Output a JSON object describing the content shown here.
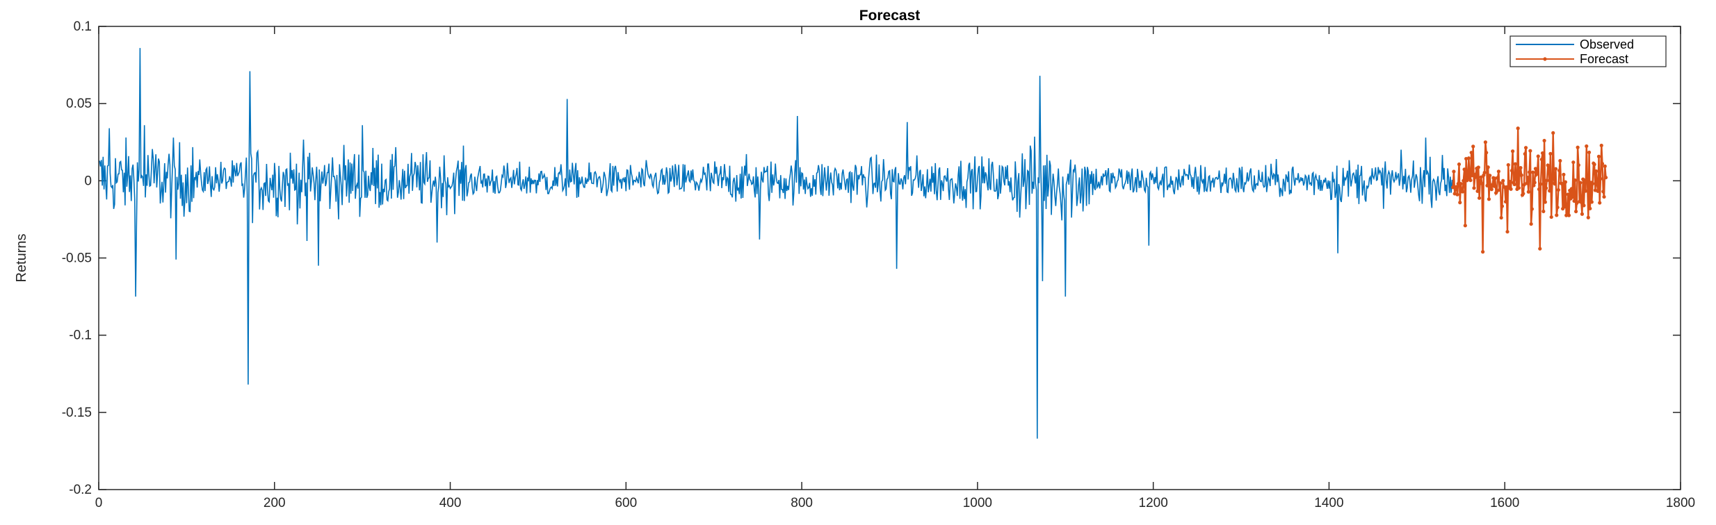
{
  "chart_data": {
    "type": "line",
    "title": "Forecast",
    "xlabel": "",
    "ylabel": "Returns",
    "xlim": [
      0,
      1800
    ],
    "ylim": [
      -0.2,
      0.1
    ],
    "xticks": [
      0,
      200,
      400,
      600,
      800,
      1000,
      1200,
      1400,
      1600,
      1800
    ],
    "yticks": [
      -0.2,
      -0.15,
      -0.1,
      -0.05,
      0,
      0.05,
      0.1
    ],
    "xtick_labels": [
      "0",
      "200",
      "400",
      "600",
      "800",
      "1000",
      "1200",
      "1400",
      "1600",
      "1800"
    ],
    "ytick_labels": [
      "-0.2",
      "-0.15",
      "-0.1",
      "-0.05",
      "0",
      "0.05",
      "0.1"
    ],
    "grid": false,
    "legend_position": "top-right",
    "series": [
      {
        "name": "Observed",
        "color": "#0072BD",
        "marker": "none",
        "x_range": [
          1,
          1541
        ],
        "spikes": [
          {
            "x": 42,
            "y": -0.075
          },
          {
            "x": 47,
            "y": 0.086
          },
          {
            "x": 52,
            "y": 0.036
          },
          {
            "x": 12,
            "y": 0.034
          },
          {
            "x": 88,
            "y": -0.051
          },
          {
            "x": 170,
            "y": -0.132
          },
          {
            "x": 172,
            "y": 0.071
          },
          {
            "x": 237,
            "y": -0.039
          },
          {
            "x": 250,
            "y": -0.055
          },
          {
            "x": 300,
            "y": 0.036
          },
          {
            "x": 385,
            "y": -0.04
          },
          {
            "x": 533,
            "y": 0.053
          },
          {
            "x": 752,
            "y": -0.038
          },
          {
            "x": 795,
            "y": 0.042
          },
          {
            "x": 908,
            "y": -0.057
          },
          {
            "x": 920,
            "y": 0.038
          },
          {
            "x": 1068,
            "y": -0.167
          },
          {
            "x": 1071,
            "y": 0.068
          },
          {
            "x": 1074,
            "y": -0.065
          },
          {
            "x": 1100,
            "y": -0.075
          },
          {
            "x": 1195,
            "y": -0.042
          },
          {
            "x": 1410,
            "y": -0.047
          },
          {
            "x": 1510,
            "y": 0.028
          }
        ]
      },
      {
        "name": "Forecast",
        "color": "#D95319",
        "marker": "dot",
        "x_range": [
          1541,
          1715
        ],
        "spikes": [
          {
            "x": 1555,
            "y": -0.029
          },
          {
            "x": 1575,
            "y": -0.046
          },
          {
            "x": 1578,
            "y": 0.025
          },
          {
            "x": 1603,
            "y": -0.033
          },
          {
            "x": 1615,
            "y": 0.034
          },
          {
            "x": 1630,
            "y": -0.028
          },
          {
            "x": 1640,
            "y": -0.044
          },
          {
            "x": 1645,
            "y": 0.026
          },
          {
            "x": 1655,
            "y": 0.031
          },
          {
            "x": 1690,
            "y": -0.016
          }
        ]
      }
    ]
  }
}
